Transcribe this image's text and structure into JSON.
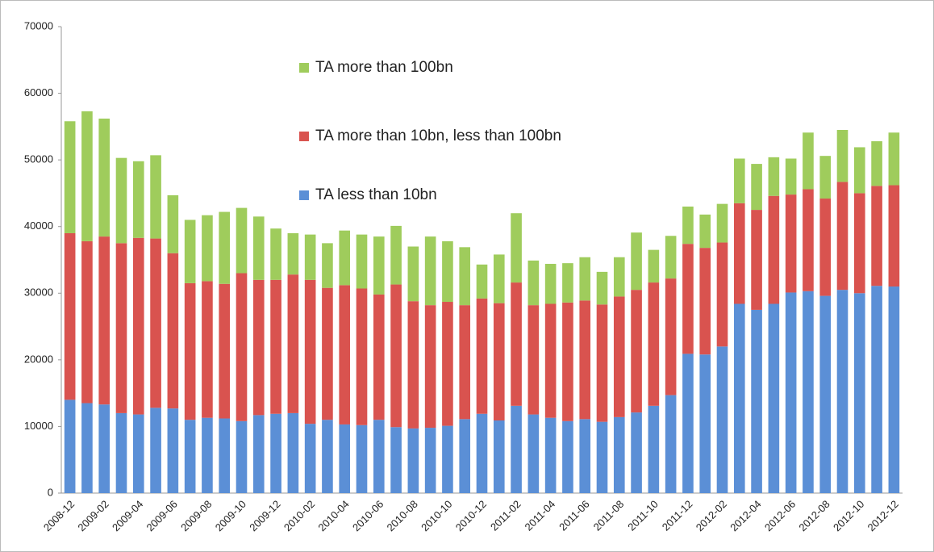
{
  "chart_data": {
    "type": "bar",
    "stacked": true,
    "categories": [
      "2008-12",
      null,
      "2009-02",
      null,
      "2009-04",
      null,
      "2009-06",
      null,
      "2009-08",
      null,
      "2009-10",
      null,
      "2009-12",
      null,
      "2010-02",
      null,
      "2010-04",
      null,
      "2010-06",
      null,
      "2010-08",
      null,
      "2010-10",
      null,
      "2010-12",
      null,
      "2011-02",
      null,
      "2011-04",
      null,
      "2011-06",
      null,
      "2011-08",
      null,
      "2011-10",
      null,
      "2011-12",
      null,
      "2012-02",
      null,
      "2012-04",
      null,
      "2012-06",
      null,
      "2012-08",
      null,
      "2012-10",
      null,
      "2012-12"
    ],
    "series": [
      {
        "name": "TA less than 10bn",
        "color": "#5b8fd6",
        "values": [
          14000,
          13500,
          13300,
          12000,
          11800,
          12800,
          12700,
          11000,
          11300,
          11200,
          10800,
          11700,
          11900,
          12000,
          10400,
          11000,
          10300,
          10200,
          11000,
          9900,
          9700,
          9800,
          10100,
          11100,
          11900,
          10900,
          13100,
          11800,
          11300,
          10800,
          11100,
          10700,
          11400,
          12100,
          13100,
          14700,
          20900,
          20800,
          22000,
          28400,
          27500,
          28400,
          30100,
          30300,
          29600,
          30500,
          30000,
          31100,
          31000
        ]
      },
      {
        "name": "TA more than 10bn, less than 100bn",
        "color": "#d9534f",
        "values": [
          25000,
          24300,
          25200,
          25500,
          26500,
          25400,
          23300,
          20500,
          20500,
          20200,
          22200,
          20300,
          20100,
          20800,
          21600,
          19800,
          20900,
          20500,
          18800,
          21400,
          19100,
          18400,
          18600,
          17100,
          17300,
          17600,
          18500,
          16400,
          17100,
          17800,
          17800,
          17600,
          18100,
          18400,
          18500,
          17500,
          16500,
          16000,
          15600,
          15100,
          15000,
          16200,
          14700,
          15300,
          14600,
          16200,
          15000,
          15000,
          15200
        ]
      },
      {
        "name": "TA more than 100bn",
        "color": "#9fcc5c",
        "values": [
          16800,
          19500,
          17700,
          12800,
          11500,
          12500,
          8700,
          9500,
          9900,
          10800,
          9800,
          9500,
          7700,
          6200,
          6800,
          6700,
          8200,
          8100,
          8700,
          8800,
          8200,
          10300,
          9100,
          8700,
          5100,
          7300,
          10400,
          6700,
          6000,
          5900,
          6500,
          4900,
          5900,
          8600,
          4900,
          6400,
          5600,
          5000,
          5800,
          6700,
          6900,
          5800,
          5400,
          8500,
          6400,
          7800,
          6900,
          6700,
          7900
        ]
      }
    ],
    "ylim": [
      0,
      70000
    ],
    "yticks": [
      0,
      10000,
      20000,
      30000,
      40000,
      50000,
      60000,
      70000
    ]
  }
}
